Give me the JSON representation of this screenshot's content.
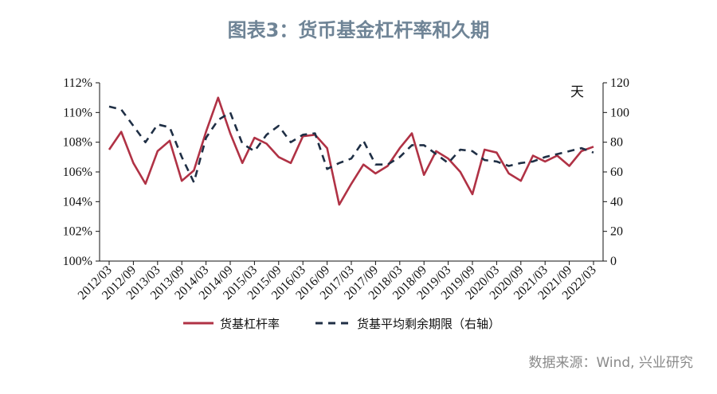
{
  "title": "图表3：货币基金杠杆率和久期",
  "source": "数据来源：Wind, 兴业研究",
  "colors": {
    "leverage": "#b03245",
    "duration": "#1f2f45",
    "title": "#6f8496",
    "axis": "#111111"
  },
  "chart_data": {
    "type": "line",
    "title": "图表3：货币基金杠杆率和久期",
    "x_tick_labels": [
      "2012/03",
      "2012/09",
      "2013/03",
      "2013/09",
      "2014/03",
      "2014/09",
      "2015/03",
      "2015/09",
      "2016/03",
      "2016/09",
      "2017/03",
      "2017/09",
      "2018/03",
      "2018/09",
      "2019/03",
      "2019/09",
      "2020/03",
      "2020/09",
      "2021/03",
      "2021/09",
      "2022/03"
    ],
    "x": [
      "2012/03",
      "2012/06",
      "2012/09",
      "2012/12",
      "2013/03",
      "2013/06",
      "2013/09",
      "2013/12",
      "2014/03",
      "2014/06",
      "2014/09",
      "2014/12",
      "2015/03",
      "2015/06",
      "2015/09",
      "2015/12",
      "2016/03",
      "2016/06",
      "2016/09",
      "2016/12",
      "2017/03",
      "2017/06",
      "2017/09",
      "2017/12",
      "2018/03",
      "2018/06",
      "2018/09",
      "2018/12",
      "2019/03",
      "2019/06",
      "2019/09",
      "2019/12",
      "2020/03",
      "2020/06",
      "2020/09",
      "2020/12",
      "2021/03",
      "2021/06",
      "2021/09",
      "2021/12",
      "2022/03"
    ],
    "left_axis": {
      "ylim": [
        100,
        112
      ],
      "ticks": [
        "100%",
        "102%",
        "104%",
        "106%",
        "108%",
        "110%",
        "112%"
      ],
      "tick_values": [
        100,
        102,
        104,
        106,
        108,
        110,
        112
      ]
    },
    "right_axis": {
      "ylim": [
        0,
        120
      ],
      "ticks": [
        "0",
        "20",
        "40",
        "60",
        "80",
        "100",
        "120"
      ],
      "tick_values": [
        0,
        20,
        40,
        60,
        80,
        100,
        120
      ],
      "unit": "天"
    },
    "series": [
      {
        "name": "货基杠杆率",
        "axis": "left",
        "style": "solid",
        "values": [
          107.5,
          108.7,
          106.6,
          105.2,
          107.4,
          108.1,
          105.4,
          106.1,
          108.7,
          111.0,
          108.6,
          106.6,
          108.3,
          107.9,
          107.0,
          106.6,
          108.4,
          108.5,
          107.6,
          103.8,
          105.2,
          106.5,
          105.9,
          106.4,
          107.6,
          108.6,
          105.8,
          107.4,
          106.9,
          106.0,
          104.5,
          107.5,
          107.3,
          105.9,
          105.4,
          107.1,
          106.7,
          107.1,
          106.4,
          107.4,
          107.7
        ]
      },
      {
        "name": "货基平均剩余期限（右轴）",
        "axis": "right",
        "style": "dashed",
        "values": [
          104,
          102,
          91,
          80,
          92,
          90,
          70,
          53,
          83,
          95,
          100,
          79,
          74,
          85,
          91,
          80,
          85,
          86,
          62,
          66,
          69,
          81,
          65,
          65,
          70,
          78,
          78,
          72,
          66,
          75,
          74,
          68,
          67,
          64,
          66,
          67,
          70,
          72,
          74,
          76,
          73
        ]
      }
    ],
    "legend": {
      "position": "bottom",
      "entries": [
        "货基杠杆率",
        "货基平均剩余期限（右轴）"
      ]
    },
    "grid": false
  }
}
